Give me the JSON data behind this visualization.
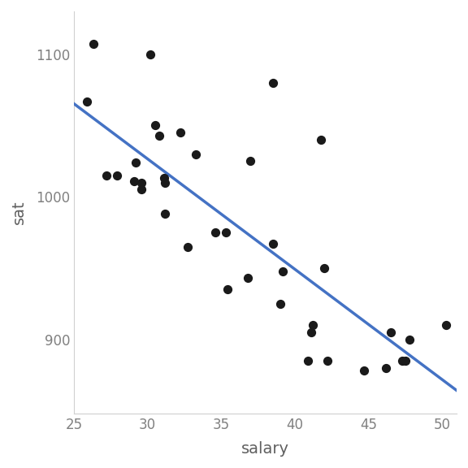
{
  "salary": [
    26.3,
    25.9,
    29.1,
    31.1,
    29.2,
    27.2,
    29.6,
    27.9,
    37.0,
    31.2,
    29.6,
    30.8,
    35.3,
    32.2,
    30.2,
    33.3,
    31.2,
    30.5,
    34.6,
    32.7,
    36.8,
    35.4,
    39.0,
    38.5,
    38.5,
    39.2,
    41.1,
    42.0,
    41.2,
    42.2,
    46.2,
    47.5,
    47.3,
    41.8,
    44.7,
    47.8,
    46.5,
    40.9,
    50.3
  ],
  "sat": [
    1107,
    1067,
    1011,
    1013,
    1024,
    1015,
    1010,
    1015,
    1025,
    988,
    1005,
    1043,
    975,
    1045,
    1100,
    1030,
    1010,
    1050,
    975,
    965,
    943,
    935,
    925,
    1080,
    967,
    948,
    905,
    950,
    910,
    885,
    880,
    885,
    885,
    1040,
    878,
    900,
    905,
    885,
    910
  ],
  "point_color": "#1a1a1a",
  "line_color": "#4472C4",
  "line_width": 2.5,
  "point_size": 50,
  "xlabel": "salary",
  "ylabel": "sat",
  "xlim": [
    25,
    51
  ],
  "ylim": [
    848,
    1130
  ],
  "xticks": [
    25,
    30,
    35,
    40,
    45,
    50
  ],
  "yticks": [
    900,
    1000,
    1100
  ],
  "tick_label_color": "#808080",
  "axis_label_color": "#606060",
  "background_color": "#ffffff",
  "label_fontsize": 14,
  "tick_fontsize": 12
}
